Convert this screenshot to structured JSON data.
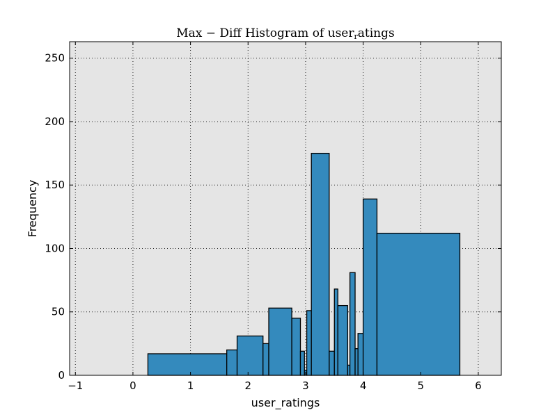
{
  "chart_data": {
    "type": "bar",
    "title": "Max − Diff Histogram of user_ratings",
    "title_parts": [
      "Max − Diff Histogram of user",
      "r",
      "atings"
    ],
    "xlabel": "user_ratings",
    "ylabel": "Frequency",
    "xlim": [
      -1.1,
      6.4
    ],
    "ylim": [
      0,
      263
    ],
    "xticks": [
      -1,
      0,
      1,
      2,
      3,
      4,
      5,
      6
    ],
    "yticks": [
      0,
      50,
      100,
      150,
      200,
      250
    ],
    "grid": true,
    "colors": {
      "bar": "#348ABD",
      "background": "#E5E5E5",
      "edge": "#000000"
    },
    "bins": [
      {
        "x0": 0.26,
        "x1": 1.63,
        "count": 17
      },
      {
        "x0": 1.63,
        "x1": 1.81,
        "count": 20
      },
      {
        "x0": 1.81,
        "x1": 2.26,
        "count": 31
      },
      {
        "x0": 2.26,
        "x1": 2.36,
        "count": 25
      },
      {
        "x0": 2.36,
        "x1": 2.76,
        "count": 53
      },
      {
        "x0": 2.76,
        "x1": 2.91,
        "count": 45
      },
      {
        "x0": 2.91,
        "x1": 2.98,
        "count": 19
      },
      {
        "x0": 2.98,
        "x1": 3.02,
        "count": 4
      },
      {
        "x0": 3.02,
        "x1": 3.1,
        "count": 51
      },
      {
        "x0": 3.1,
        "x1": 3.41,
        "count": 175
      },
      {
        "x0": 3.41,
        "x1": 3.5,
        "count": 19
      },
      {
        "x0": 3.5,
        "x1": 3.56,
        "count": 68
      },
      {
        "x0": 3.56,
        "x1": 3.73,
        "count": 55
      },
      {
        "x0": 3.73,
        "x1": 3.77,
        "count": 8
      },
      {
        "x0": 3.77,
        "x1": 3.86,
        "count": 81
      },
      {
        "x0": 3.86,
        "x1": 3.91,
        "count": 21
      },
      {
        "x0": 3.91,
        "x1": 4.0,
        "count": 33
      },
      {
        "x0": 4.0,
        "x1": 4.24,
        "count": 139
      },
      {
        "x0": 4.24,
        "x1": 5.68,
        "count": 112
      }
    ]
  }
}
